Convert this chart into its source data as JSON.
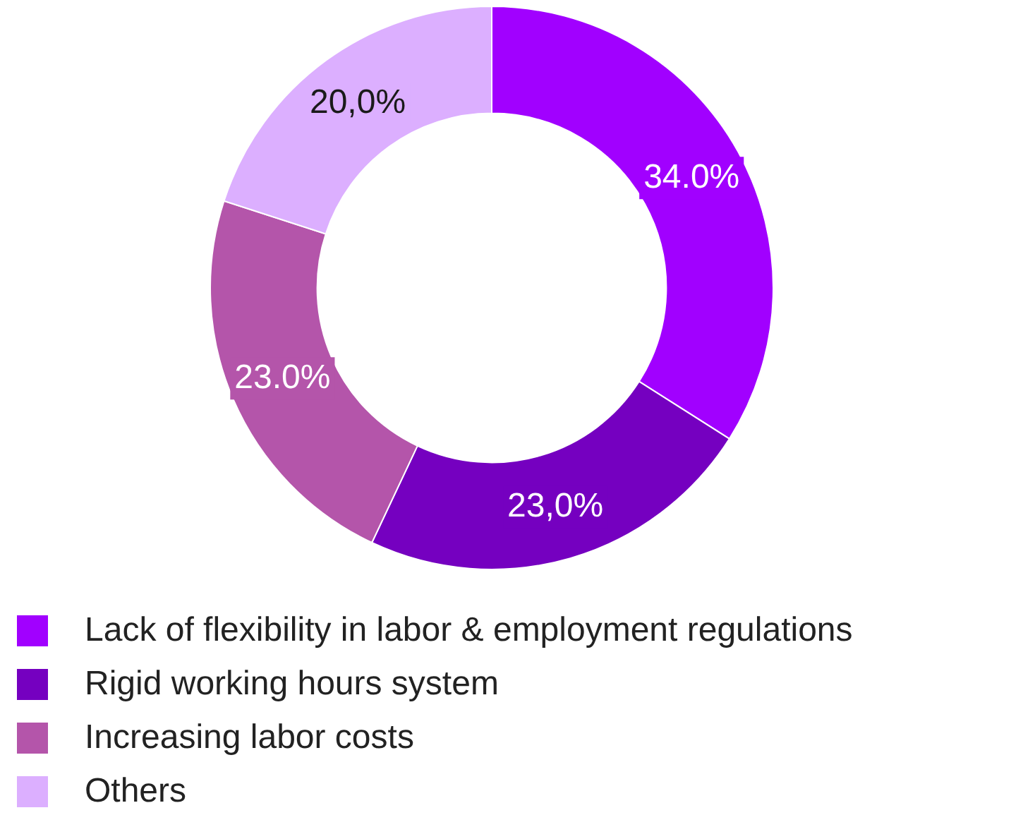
{
  "chart_data": {
    "type": "donut",
    "categories": [
      "Lack of flexibility in labor & employment regulations",
      "Rigid working hours system",
      "Increasing labor costs",
      "Others"
    ],
    "values": [
      34,
      23,
      23,
      20
    ],
    "value_labels": [
      "34.0%",
      "23,0%",
      "23.0%",
      "20,0%"
    ],
    "colors": [
      "#a100ff",
      "#7500c0",
      "#b455aa",
      "#dcafff"
    ],
    "legend": "bottom"
  }
}
